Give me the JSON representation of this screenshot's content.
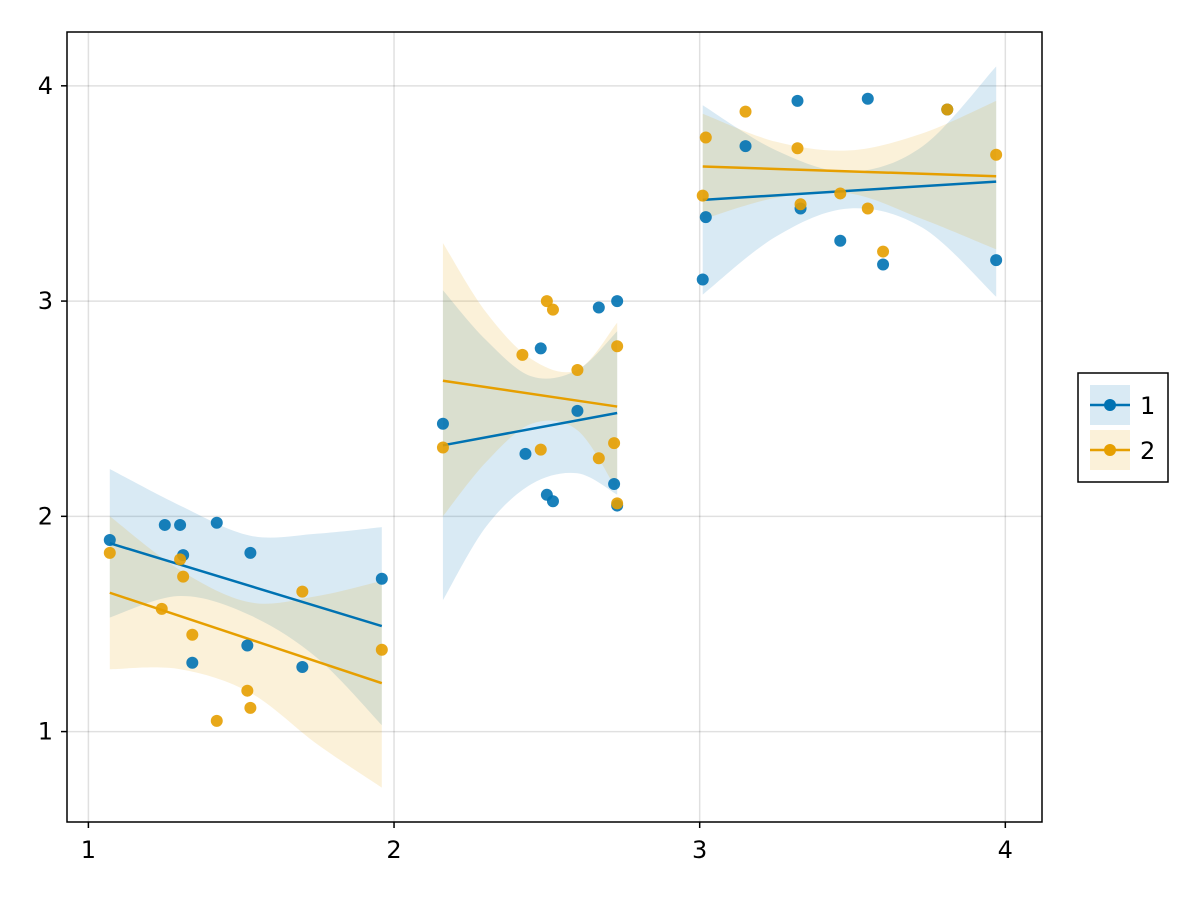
{
  "chart_data": {
    "type": "scatter",
    "xlim": [
      0.93,
      4.12
    ],
    "ylim": [
      0.58,
      4.25
    ],
    "xticks": [
      "1",
      "2",
      "3",
      "4"
    ],
    "yticks": [
      "1",
      "2",
      "3",
      "4"
    ],
    "grid": true,
    "legend_position": "right",
    "colors": {
      "1": "#0072b2",
      "2": "#e69f00"
    },
    "series": [
      {
        "name": "1",
        "points": [
          [
            1.07,
            1.89
          ],
          [
            1.25,
            1.96
          ],
          [
            1.3,
            1.96
          ],
          [
            1.31,
            1.82
          ],
          [
            1.34,
            1.32
          ],
          [
            1.42,
            1.97
          ],
          [
            1.52,
            1.4
          ],
          [
            1.53,
            1.83
          ],
          [
            1.7,
            1.3
          ],
          [
            1.96,
            1.71
          ],
          [
            2.16,
            2.43
          ],
          [
            2.43,
            2.29
          ],
          [
            2.48,
            2.78
          ],
          [
            2.5,
            2.1
          ],
          [
            2.52,
            2.07
          ],
          [
            2.6,
            2.49
          ],
          [
            2.67,
            2.97
          ],
          [
            2.72,
            2.15
          ],
          [
            2.73,
            2.05
          ],
          [
            2.73,
            3.0
          ],
          [
            3.01,
            3.1
          ],
          [
            3.02,
            3.39
          ],
          [
            3.15,
            3.72
          ],
          [
            3.32,
            3.93
          ],
          [
            3.33,
            3.43
          ],
          [
            3.46,
            3.28
          ],
          [
            3.55,
            3.94
          ],
          [
            3.6,
            3.17
          ],
          [
            3.81,
            3.89
          ],
          [
            3.97,
            3.19
          ]
        ],
        "fit": [
          [
            1.07,
            1.875
          ],
          [
            1.96,
            1.49
          ],
          [
            2.16,
            2.33
          ],
          [
            2.73,
            2.48
          ],
          [
            3.01,
            3.47
          ],
          [
            3.97,
            3.555
          ]
        ],
        "band": [
          [
            [
              1.07,
              2.22,
              1.53
            ],
            [
              1.3,
              2.05,
              1.63
            ],
            [
              1.53,
              1.91,
              1.54
            ],
            [
              1.75,
              1.92,
              1.34
            ],
            [
              1.96,
              1.95,
              1.03
            ]
          ],
          [
            [
              2.16,
              1.61,
              3.05
            ],
            [
              2.3,
              1.95,
              2.82
            ],
            [
              2.45,
              2.15,
              2.65
            ],
            [
              2.6,
              2.2,
              2.68
            ],
            [
              2.73,
              2.1,
              2.86
            ]
          ],
          [
            [
              3.01,
              3.03,
              3.91
            ],
            [
              3.25,
              3.3,
              3.7
            ],
            [
              3.49,
              3.43,
              3.6
            ],
            [
              3.73,
              3.34,
              3.72
            ],
            [
              3.97,
              3.02,
              4.09
            ]
          ]
        ]
      },
      {
        "name": "2",
        "points": [
          [
            1.07,
            1.83
          ],
          [
            1.24,
            1.57
          ],
          [
            1.3,
            1.8
          ],
          [
            1.31,
            1.72
          ],
          [
            1.34,
            1.45
          ],
          [
            1.42,
            1.05
          ],
          [
            1.52,
            1.19
          ],
          [
            1.53,
            1.11
          ],
          [
            1.7,
            1.65
          ],
          [
            1.96,
            1.38
          ],
          [
            2.16,
            2.32
          ],
          [
            2.42,
            2.75
          ],
          [
            2.48,
            2.31
          ],
          [
            2.5,
            3.0
          ],
          [
            2.52,
            2.96
          ],
          [
            2.6,
            2.68
          ],
          [
            2.67,
            2.27
          ],
          [
            2.72,
            2.34
          ],
          [
            2.73,
            2.06
          ],
          [
            2.73,
            2.79
          ],
          [
            3.01,
            3.49
          ],
          [
            3.02,
            3.76
          ],
          [
            3.15,
            3.88
          ],
          [
            3.32,
            3.71
          ],
          [
            3.33,
            3.45
          ],
          [
            3.46,
            3.5
          ],
          [
            3.55,
            3.43
          ],
          [
            3.6,
            3.23
          ],
          [
            3.81,
            3.89
          ],
          [
            3.97,
            3.68
          ]
        ],
        "fit": [
          [
            1.07,
            1.645
          ],
          [
            1.96,
            1.225
          ],
          [
            2.16,
            2.63
          ],
          [
            2.73,
            2.51
          ],
          [
            3.01,
            3.625
          ],
          [
            3.97,
            3.58
          ]
        ],
        "band": [
          [
            [
              1.07,
              2.0,
              1.29
            ],
            [
              1.3,
              1.75,
              1.29
            ],
            [
              1.53,
              1.6,
              1.18
            ],
            [
              1.75,
              1.63,
              0.94
            ],
            [
              1.96,
              1.7,
              0.74
            ]
          ],
          [
            [
              2.16,
              3.27,
              2.0
            ],
            [
              2.3,
              2.95,
              2.25
            ],
            [
              2.45,
              2.73,
              2.43
            ],
            [
              2.6,
              2.68,
              2.4
            ],
            [
              2.73,
              2.9,
              2.12
            ]
          ],
          [
            [
              3.01,
              3.87,
              3.38
            ],
            [
              3.25,
              3.74,
              3.48
            ],
            [
              3.49,
              3.7,
              3.5
            ],
            [
              3.73,
              3.78,
              3.38
            ],
            [
              3.97,
              3.93,
              3.24
            ]
          ]
        ]
      }
    ]
  }
}
